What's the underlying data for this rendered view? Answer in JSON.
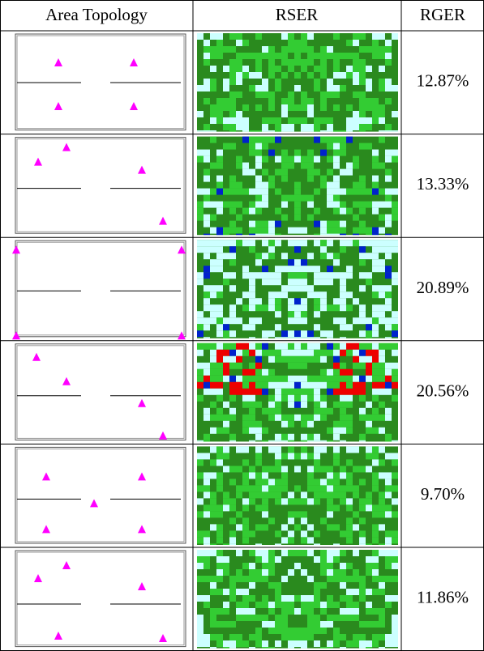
{
  "table": {
    "header": [
      "Area Topology",
      "RSER",
      "RGER"
    ],
    "rows": [
      {
        "rger": "12.87%"
      },
      {
        "rger": "13.33%"
      },
      {
        "rger": "20.89%"
      },
      {
        "rger": "20.56%"
      },
      {
        "rger": "9.70%"
      },
      {
        "rger": "11.86%"
      }
    ]
  }
}
